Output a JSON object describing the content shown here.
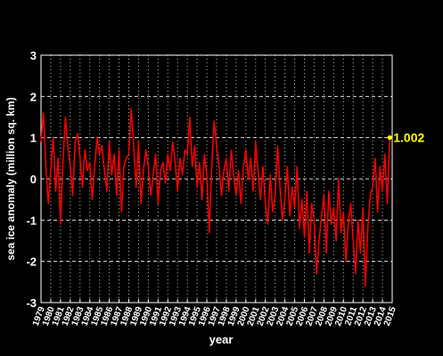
{
  "chart_data": {
    "type": "line",
    "x_label": "year",
    "y_label": "sea ice anomaly (million sq. km)",
    "annotation": "1.002",
    "annotation_color": "#ffff00",
    "grid": true,
    "xlim": [
      1979,
      2015
    ],
    "ylim": [
      -3,
      3
    ],
    "xticks": [
      1979,
      1980,
      1981,
      1982,
      1983,
      1984,
      1985,
      1986,
      1987,
      1988,
      1989,
      1990,
      1991,
      1992,
      1993,
      1994,
      1995,
      1996,
      1997,
      1998,
      1999,
      2000,
      2001,
      2002,
      2003,
      2004,
      2005,
      2006,
      2007,
      2008,
      2009,
      2010,
      2011,
      2012,
      2013,
      2014,
      2015
    ],
    "yticks": [
      -3,
      -2,
      -1,
      0,
      1,
      2,
      3
    ],
    "x": [
      1979,
      1979.25,
      1979.5,
      1979.75,
      1980,
      1980.25,
      1980.5,
      1980.75,
      1981,
      1981.25,
      1981.5,
      1981.75,
      1982,
      1982.25,
      1982.5,
      1982.75,
      1983,
      1983.25,
      1983.5,
      1983.75,
      1984,
      1984.25,
      1984.5,
      1984.75,
      1985,
      1985.25,
      1985.5,
      1985.75,
      1986,
      1986.25,
      1986.5,
      1986.75,
      1987,
      1987.25,
      1987.5,
      1987.75,
      1988,
      1988.25,
      1988.5,
      1988.75,
      1989,
      1989.25,
      1989.5,
      1989.75,
      1990,
      1990.25,
      1990.5,
      1990.75,
      1991,
      1991.25,
      1991.5,
      1991.75,
      1992,
      1992.25,
      1992.5,
      1992.75,
      1993,
      1993.25,
      1993.5,
      1993.75,
      1994,
      1994.25,
      1994.5,
      1994.75,
      1995,
      1995.25,
      1995.5,
      1995.75,
      1996,
      1996.25,
      1996.5,
      1996.75,
      1997,
      1997.25,
      1997.5,
      1997.75,
      1998,
      1998.25,
      1998.5,
      1998.75,
      1999,
      1999.25,
      1999.5,
      1999.75,
      2000,
      2000.25,
      2000.5,
      2000.75,
      2001,
      2001.25,
      2001.5,
      2001.75,
      2002,
      2002.25,
      2002.5,
      2002.75,
      2003,
      2003.25,
      2003.5,
      2003.75,
      2004,
      2004.25,
      2004.5,
      2004.75,
      2005,
      2005.25,
      2005.5,
      2005.75,
      2006,
      2006.25,
      2006.5,
      2006.75,
      2007,
      2007.25,
      2007.5,
      2007.75,
      2008,
      2008.25,
      2008.5,
      2008.75,
      2009,
      2009.25,
      2009.5,
      2009.75,
      2010,
      2010.25,
      2010.5,
      2010.75,
      2011,
      2011.25,
      2011.5,
      2011.75,
      2012,
      2012.25,
      2012.5,
      2012.75,
      2013,
      2013.25,
      2013.5,
      2013.75,
      2014,
      2014.25,
      2014.5,
      2014.75
    ],
    "series": [
      {
        "color": "#ff0000",
        "values": [
          0.9,
          1.6,
          0.3,
          -0.6,
          0.2,
          1.0,
          -0.3,
          0.5,
          -1.1,
          0.4,
          1.5,
          0.8,
          0.3,
          -0.4,
          0.9,
          1.1,
          0.5,
          -0.2,
          0.7,
          0.2,
          0.4,
          -0.5,
          0.3,
          1.0,
          0.6,
          0.8,
          0.2,
          -0.3,
          0.9,
          0.1,
          0.6,
          -0.4,
          0.7,
          -0.8,
          0.3,
          0.5,
          0.6,
          1.7,
          0.8,
          -0.2,
          0.9,
          -0.6,
          0.2,
          0.7,
          0.3,
          -0.4,
          0.1,
          0.6,
          -0.6,
          0.2,
          0.4,
          -0.1,
          0.6,
          0.2,
          0.9,
          0.4,
          -0.3,
          0.5,
          0.1,
          0.7,
          0.6,
          1.5,
          0.3,
          0.8,
          -0.2,
          0.4,
          -0.5,
          0.6,
          0.1,
          -1.3,
          0.3,
          1.4,
          0.8,
          0.3,
          -0.4,
          0.2,
          0.5,
          -0.3,
          0.7,
          0.1,
          -0.4,
          0.2,
          -0.6,
          0.3,
          0.7,
          0.0,
          0.5,
          -0.3,
          0.9,
          0.2,
          -0.5,
          0.3,
          -0.6,
          -1.1,
          0.1,
          -0.8,
          -0.4,
          0.8,
          -0.2,
          -1.0,
          -0.5,
          0.3,
          -0.9,
          -0.2,
          -0.7,
          0.3,
          -1.2,
          -0.5,
          -1.4,
          -0.3,
          -1.8,
          -0.6,
          -1.0,
          -2.3,
          -1.5,
          -0.9,
          -0.4,
          -1.8,
          -0.3,
          -1.1,
          -0.7,
          -1.5,
          0.0,
          -1.3,
          -0.8,
          -2.0,
          -1.1,
          -0.6,
          -1.5,
          -2.3,
          -1.0,
          -1.8,
          -0.7,
          -2.6,
          -1.2,
          -0.4,
          -0.2,
          0.5,
          -0.8,
          0.3,
          -0.3,
          0.6,
          -0.6,
          1.002
        ]
      }
    ]
  }
}
